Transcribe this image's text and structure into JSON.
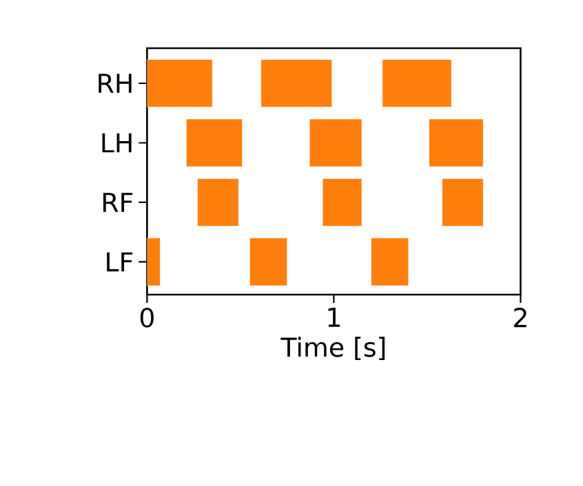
{
  "chart_data": {
    "type": "bar",
    "orientation": "horizontal",
    "xlabel": "Time [s]",
    "categories": [
      "RH",
      "LH",
      "RF",
      "LF"
    ],
    "xlim": [
      0,
      2
    ],
    "xticks": [
      0,
      1,
      2
    ],
    "series": [
      {
        "color": "#ff7f0e",
        "base": [
          0,
          0.21,
          0.27,
          0
        ],
        "values": [
          0.35,
          0.3,
          0.22,
          0.07
        ]
      },
      {
        "color": "#ff7f0e",
        "base": [
          0.61,
          0.87,
          0.94,
          0.55
        ],
        "values": [
          0.38,
          0.28,
          0.21,
          0.2
        ]
      },
      {
        "color": "#ff7f0e",
        "base": [
          1.26,
          1.51,
          1.58,
          1.2
        ],
        "values": [
          0.37,
          0.29,
          0.22,
          0.2
        ]
      }
    ]
  }
}
